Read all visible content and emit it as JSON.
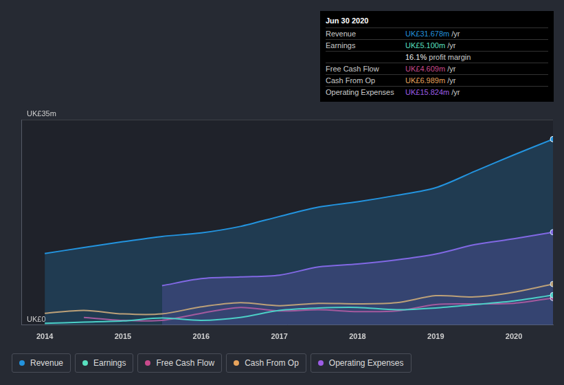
{
  "chart_data": {
    "type": "line",
    "x": [
      2014,
      2014.5,
      2015,
      2015.5,
      2016,
      2016.5,
      2017,
      2017.5,
      2018,
      2018.5,
      2019,
      2019.5,
      2020,
      2020.5
    ],
    "series": [
      {
        "name": "Revenue",
        "color": "#2394df",
        "values": [
          12.2,
          13.2,
          14.2,
          15.1,
          15.7,
          16.8,
          18.5,
          20.1,
          21.0,
          22.1,
          23.4,
          26.2,
          29.0,
          31.678
        ]
      },
      {
        "name": "Earnings",
        "color": "#58e0c0",
        "values": [
          0.3,
          0.5,
          0.7,
          1.2,
          0.8,
          1.3,
          2.5,
          2.9,
          3.0,
          2.6,
          2.9,
          3.5,
          4.1,
          5.1
        ]
      },
      {
        "name": "Free Cash Flow",
        "color": "#c94a8c",
        "values": [
          null,
          1.3,
          0.8,
          0.8,
          2.0,
          3.0,
          2.4,
          2.6,
          2.3,
          2.4,
          3.5,
          3.6,
          3.7,
          4.609
        ]
      },
      {
        "name": "Cash From Op",
        "color": "#e8a45c",
        "values": [
          2.0,
          2.5,
          1.9,
          1.9,
          3.1,
          3.8,
          3.3,
          3.7,
          3.6,
          3.8,
          5.0,
          4.8,
          5.6,
          6.989
        ]
      },
      {
        "name": "Operating Expenses",
        "color": "#9c5ce6",
        "values": [
          null,
          null,
          null,
          6.7,
          7.9,
          8.2,
          8.5,
          9.9,
          10.4,
          11.1,
          12.1,
          13.7,
          14.7,
          15.824
        ]
      }
    ],
    "xlim": [
      2013.7,
      2020.5
    ],
    "xticks": [
      2014,
      2015,
      2016,
      2017,
      2018,
      2019,
      2020
    ],
    "ylim": [
      0,
      35
    ],
    "yticks": [
      {
        "value": 0,
        "label": "UK£0"
      },
      {
        "value": 35,
        "label": "UK£35m"
      }
    ],
    "grid": true,
    "legend": "bottom",
    "annotation": {
      "title": "Jun 30 2020",
      "rows": [
        {
          "label": "Revenue",
          "value": "UK£31.678m",
          "unit": "/yr"
        },
        {
          "label": "Earnings",
          "value": "UK£5.100m",
          "unit": "/yr"
        },
        {
          "value": "16.1%",
          "unit": "profit margin"
        },
        {
          "label": "Free Cash Flow",
          "value": "UK£4.609m",
          "unit": "/yr"
        },
        {
          "label": "Cash From Op",
          "value": "UK£6.989m",
          "unit": "/yr"
        },
        {
          "label": "Operating Expenses",
          "value": "UK£15.824m",
          "unit": "/yr"
        }
      ]
    }
  }
}
